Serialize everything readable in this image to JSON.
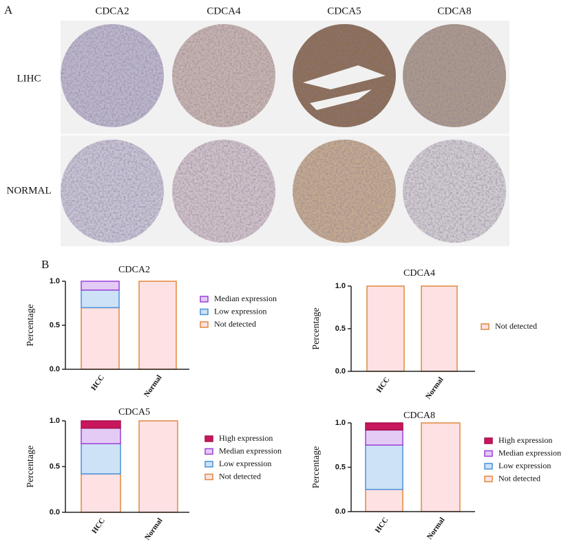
{
  "panel_a": {
    "label": "A",
    "columns": [
      "CDCA2",
      "CDCA4",
      "CDCA5",
      "CDCA8"
    ],
    "rows": [
      "LIHC",
      "NORMAL"
    ]
  },
  "panel_b_label": "B",
  "chart_data": [
    {
      "type": "stacked_bar",
      "title": "CDCA2",
      "ylabel": "Percentage",
      "categories": [
        "HCC",
        "Normal"
      ],
      "ylim": [
        0,
        1
      ],
      "yticks": [
        {
          "value": 0,
          "label": "0.0"
        },
        {
          "value": 0.5,
          "label": "0.5"
        },
        {
          "value": 1,
          "label": "1.0"
        }
      ],
      "series": [
        {
          "name": "Not detected",
          "color": "#fde1e3",
          "edgecolor": "#e0883c",
          "values": [
            0.7,
            1.0
          ]
        },
        {
          "name": "Low expression",
          "color": "#cde2f7",
          "edgecolor": "#4a90d9",
          "values": [
            0.2,
            0
          ]
        },
        {
          "name": "Median expression",
          "color": "#e3cbf6",
          "edgecolor": "#9b3fd6",
          "values": [
            0.1,
            0
          ]
        }
      ]
    },
    {
      "type": "stacked_bar",
      "title": "CDCA4",
      "ylabel": "Percentage",
      "categories": [
        "HCC",
        "Normal"
      ],
      "ylim": [
        0,
        1
      ],
      "yticks": [
        {
          "value": 0,
          "label": "0.0"
        },
        {
          "value": 0.5,
          "label": "0.5"
        },
        {
          "value": 1,
          "label": "1.0"
        }
      ],
      "series": [
        {
          "name": "Not detected",
          "color": "#fde1e3",
          "edgecolor": "#e0883c",
          "values": [
            1.0,
            1.0
          ]
        }
      ]
    },
    {
      "type": "stacked_bar",
      "title": "CDCA5",
      "ylabel": "Percentage",
      "categories": [
        "HCC",
        "Normal"
      ],
      "ylim": [
        0,
        1
      ],
      "yticks": [
        {
          "value": 0,
          "label": "0.0"
        },
        {
          "value": 0.5,
          "label": "0.5"
        },
        {
          "value": 1,
          "label": "1.0"
        }
      ],
      "series": [
        {
          "name": "Not detected",
          "color": "#fde1e3",
          "edgecolor": "#e0883c",
          "values": [
            0.42,
            1.0
          ]
        },
        {
          "name": "Low expression",
          "color": "#cde2f7",
          "edgecolor": "#4a90d9",
          "values": [
            0.33,
            0
          ]
        },
        {
          "name": "Median expression",
          "color": "#e3cbf6",
          "edgecolor": "#9b3fd6",
          "values": [
            0.17,
            0
          ]
        },
        {
          "name": "High expression",
          "color": "#c8175d",
          "edgecolor": "#a8104c",
          "values": [
            0.08,
            0
          ]
        }
      ]
    },
    {
      "type": "stacked_bar",
      "title": "CDCA8",
      "ylabel": "Percentage",
      "categories": [
        "HCC",
        "Normal"
      ],
      "ylim": [
        0,
        1
      ],
      "yticks": [
        {
          "value": 0,
          "label": "0.0"
        },
        {
          "value": 0.5,
          "label": "0.5"
        },
        {
          "value": 1,
          "label": "1.0"
        }
      ],
      "series": [
        {
          "name": "Not detected",
          "color": "#fde1e3",
          "edgecolor": "#e0883c",
          "values": [
            0.25,
            1.0
          ]
        },
        {
          "name": "Low expression",
          "color": "#cde2f7",
          "edgecolor": "#4a90d9",
          "values": [
            0.5,
            0
          ]
        },
        {
          "name": "Median expression",
          "color": "#e3cbf6",
          "edgecolor": "#9b3fd6",
          "values": [
            0.17,
            0
          ]
        },
        {
          "name": "High expression",
          "color": "#c8175d",
          "edgecolor": "#a8104c",
          "values": [
            0.08,
            0
          ]
        }
      ]
    }
  ]
}
